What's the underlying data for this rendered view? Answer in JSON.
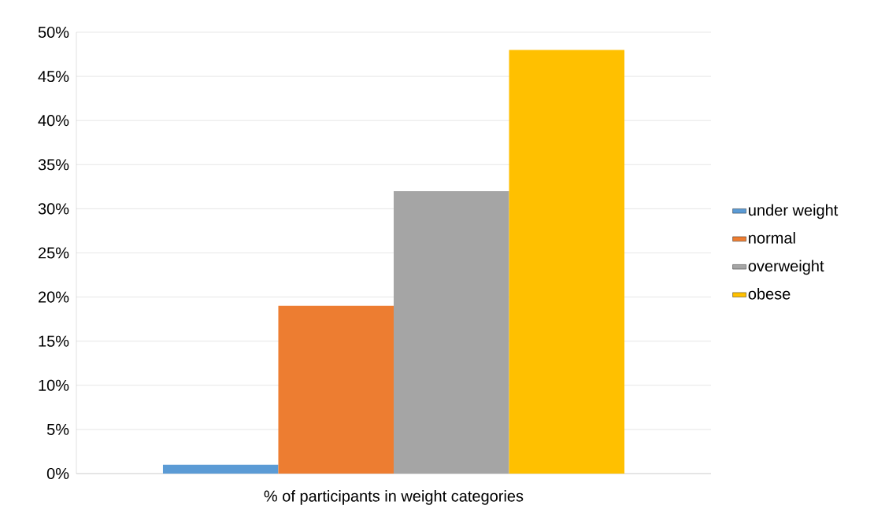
{
  "chart_data": {
    "type": "bar",
    "categories": [
      "% of participants in weight categories"
    ],
    "series": [
      {
        "name": "under weight",
        "color": "#5b9bd5",
        "values": [
          1
        ]
      },
      {
        "name": "normal",
        "color": "#ed7d31",
        "values": [
          19
        ]
      },
      {
        "name": "overweight",
        "color": "#a5a5a5",
        "values": [
          32
        ]
      },
      {
        "name": "obese",
        "color": "#ffc000",
        "values": [
          48
        ]
      }
    ],
    "ylim": [
      0,
      50
    ],
    "yticks": [
      {
        "value": 0,
        "label": "0%"
      },
      {
        "value": 5,
        "label": "5%"
      },
      {
        "value": 10,
        "label": "10%"
      },
      {
        "value": 15,
        "label": "15%"
      },
      {
        "value": 20,
        "label": "20%"
      },
      {
        "value": 25,
        "label": "25%"
      },
      {
        "value": 30,
        "label": "30%"
      },
      {
        "value": 35,
        "label": "35%"
      },
      {
        "value": 40,
        "label": "40%"
      },
      {
        "value": 45,
        "label": "45%"
      },
      {
        "value": 50,
        "label": "50%"
      }
    ],
    "grid": "y",
    "legend": "right"
  }
}
